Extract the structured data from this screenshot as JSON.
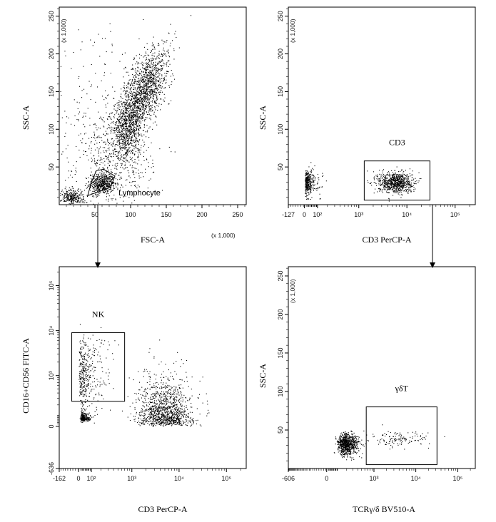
{
  "chart_data": [
    {
      "id": "p1",
      "type": "scatter",
      "xlabel": "FSC-A",
      "ylabel": "SSC-A",
      "x_multiplier": "(x 1,000)",
      "y_multiplier": "(x 1,000)",
      "xlim": [
        0,
        262
      ],
      "ylim": [
        0,
        262
      ],
      "x_ticks": [
        "50",
        "100",
        "150",
        "200",
        "250"
      ],
      "x_tick_values": [
        50,
        100,
        150,
        200,
        250
      ],
      "y_ticks": [
        "50",
        "100",
        "150",
        "200",
        "250"
      ],
      "y_tick_values": [
        50,
        100,
        150,
        200,
        250
      ],
      "gate": {
        "name": "Lymphocyte",
        "shape": "polygon",
        "vertices": [
          [
            40,
            12
          ],
          [
            72,
            23
          ],
          [
            78,
            38
          ],
          [
            62,
            47
          ],
          [
            52,
            45
          ],
          [
            45,
            30
          ]
        ]
      },
      "clusters": [
        {
          "cx": 60,
          "cy": 28,
          "sx": 9,
          "sy": 7,
          "n": 500
        },
        {
          "cx": 118,
          "cy": 150,
          "sx": 14,
          "sy": 28,
          "n": 1500
        },
        {
          "cx": 95,
          "cy": 100,
          "sx": 10,
          "sy": 18,
          "n": 600
        },
        {
          "cx": 18,
          "cy": 10,
          "sx": 8,
          "sy": 6,
          "n": 300
        },
        {
          "cx": 80,
          "cy": 60,
          "sx": 25,
          "sy": 30,
          "n": 500
        },
        {
          "cx": 40,
          "cy": 120,
          "sx": 35,
          "sy": 60,
          "n": 200
        }
      ]
    },
    {
      "id": "p2",
      "type": "scatter",
      "xlabel": "CD3 PerCP-A",
      "ylabel": "SSC-A",
      "y_multiplier": "(x 1,000)",
      "x_scale": "biexponential",
      "xlim": [
        -127,
        262144
      ],
      "ylim": [
        0,
        262
      ],
      "x_ticks": [
        "-127",
        "0",
        "10²",
        "10³",
        "10⁴",
        "10⁵"
      ],
      "x_tick_values": [
        -127,
        0,
        100,
        1000,
        10000,
        100000
      ],
      "y_ticks": [
        "50",
        "100",
        "150",
        "200",
        "250"
      ],
      "y_tick_values": [
        50,
        100,
        150,
        200,
        250
      ],
      "gate": {
        "name": "CD3",
        "shape": "rectangle",
        "x": [
          1300,
          30000
        ],
        "y": [
          6,
          58
        ]
      },
      "clusters": [
        {
          "cx_log": 1.4,
          "cy": 30,
          "sx_log": 0.35,
          "sy": 8,
          "n": 350
        },
        {
          "cx_log": 3.75,
          "cy": 30,
          "sx_log": 0.18,
          "sy": 7,
          "n": 800
        }
      ]
    },
    {
      "id": "p3",
      "type": "scatter",
      "xlabel": "CD3 PerCP-A",
      "ylabel": "CD16+CD56 FITC-A",
      "x_scale": "biexponential",
      "y_scale": "biexponential",
      "xlim": [
        -162,
        262144
      ],
      "ylim": [
        -636,
        262144
      ],
      "x_ticks": [
        "-162",
        "0",
        "10²",
        "10³",
        "10⁴",
        "10⁵"
      ],
      "x_tick_values": [
        -162,
        0,
        100,
        1000,
        10000,
        100000
      ],
      "y_ticks": [
        "-636",
        "0",
        "10³",
        "10⁴",
        "10⁵"
      ],
      "y_tick_values": [
        -636,
        0,
        1000,
        10000,
        100000
      ],
      "gate": {
        "name": "NK",
        "shape": "rectangle",
        "x": [
          -50,
          700
        ],
        "y": [
          250,
          9000
        ]
      },
      "clusters": [
        {
          "cx_log": 1.65,
          "cy_log": 3.0,
          "sx_log": 0.45,
          "sy_log": 0.45,
          "n": 400
        },
        {
          "cx_log": 1.6,
          "cy_log": 1.85,
          "sx_log": 0.22,
          "sy_log": 0.12,
          "n": 220
        },
        {
          "cx_log": 3.7,
          "cy_log": 2.1,
          "sx_log": 0.28,
          "sy_log": 0.45,
          "n": 1200
        }
      ]
    },
    {
      "id": "p4",
      "type": "scatter",
      "xlabel": "TCRγ/δ BV510-A",
      "ylabel": "SSC-A",
      "y_multiplier": "(x 1,000)",
      "x_scale": "biexponential",
      "xlim": [
        -606,
        262144
      ],
      "ylim": [
        0,
        262
      ],
      "x_ticks": [
        "-606",
        "0",
        "10³",
        "10⁴",
        "10⁵"
      ],
      "x_tick_values": [
        -606,
        0,
        1000,
        10000,
        100000
      ],
      "y_ticks": [
        "50",
        "100",
        "150",
        "200",
        "250"
      ],
      "y_tick_values": [
        50,
        100,
        150,
        200,
        250
      ],
      "gate": {
        "name": "γδT",
        "shape": "rectangle",
        "x": [
          650,
          32000
        ],
        "y": [
          5,
          80
        ]
      },
      "clusters": [
        {
          "cx_log": 2.3,
          "cy": 32,
          "sx_log": 0.16,
          "sy": 7,
          "n": 800
        },
        {
          "cx_log": 3.6,
          "cy": 38,
          "sx_log": 0.35,
          "sy": 5,
          "n": 130
        }
      ]
    }
  ]
}
